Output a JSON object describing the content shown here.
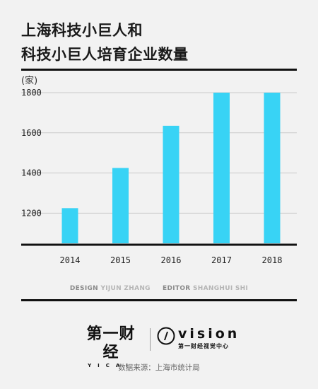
{
  "header": {
    "title_line1": "上海科技小巨人和",
    "title_line2": "科技小巨人培育企业数量"
  },
  "chart_data": {
    "type": "bar",
    "unit_label": "(家)",
    "categories": [
      "2014",
      "2015",
      "2016",
      "2017",
      "2018"
    ],
    "values": [
      1225,
      1425,
      1635,
      1800,
      1800
    ],
    "yticks": [
      1200,
      1400,
      1600,
      1800
    ],
    "ylim": [
      1050,
      1800
    ],
    "bar_color": "#38d3f5",
    "grid": true
  },
  "credits": {
    "design_label": "DESIGN",
    "design_name": "YIJUN ZHANG",
    "editor_label": "EDITOR",
    "editor_name": "SHANGHUI SHI"
  },
  "logos": {
    "yicai_cn": "第一财经",
    "yicai_en": "YICAI",
    "vision_en": "vision",
    "vision_cn": "第一财经视觉中心"
  },
  "source": "数据来源：上海市统计局"
}
